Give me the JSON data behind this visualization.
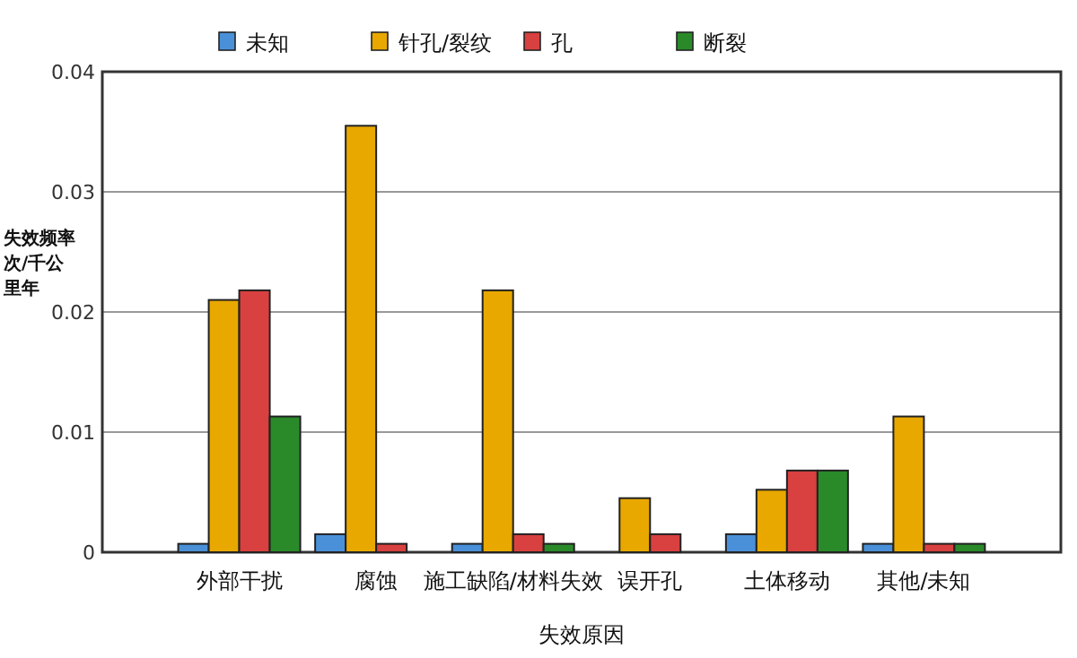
{
  "chart_data": {
    "type": "bar",
    "xlabel": "失效原因",
    "ylabel": "失效频率次/千公里年",
    "categories": [
      "外部干扰",
      "腐蚀",
      "施工缺陷/材料失效",
      "误开孔",
      "土体移动",
      "其他/未知"
    ],
    "series": [
      {
        "name": "未知",
        "color": "#4a90d9",
        "values": [
          0.0007,
          0.0015,
          0.0007,
          null,
          0.0015,
          0.0007
        ]
      },
      {
        "name": "针孔/裂纹",
        "color": "#e8a800",
        "values": [
          0.021,
          0.0355,
          0.0218,
          0.0045,
          0.0052,
          0.0113
        ]
      },
      {
        "name": "孔",
        "color": "#d94040",
        "values": [
          0.0218,
          0.0007,
          0.0015,
          0.0015,
          0.0068,
          0.0007
        ]
      },
      {
        "name": "断裂",
        "color": "#2a8a2a",
        "values": [
          0.0113,
          null,
          0.0007,
          null,
          0.0068,
          0.0007
        ]
      }
    ],
    "ylim": [
      0,
      0.04
    ],
    "yticks": [
      0,
      0.01,
      0.02,
      0.03,
      0.04
    ],
    "grid": "y",
    "legend": "top"
  }
}
